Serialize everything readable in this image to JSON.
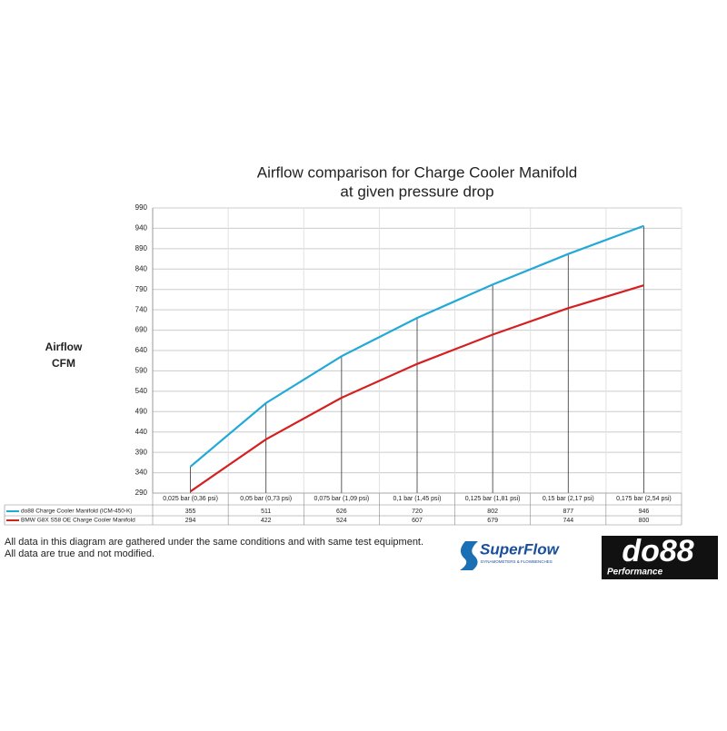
{
  "chart_data": {
    "type": "line",
    "title_lines": [
      "Airflow comparison for Charge Cooler Manifold",
      "at given pressure drop"
    ],
    "y_label_lines": [
      "Airflow",
      "CFM"
    ],
    "categories": [
      "0,025 bar (0,36 psi)",
      "0,05 bar (0,73 psi)",
      "0,075 bar (1,09 psi)",
      "0,1 bar (1,45 psi)",
      "0,125 bar (1,81 psi)",
      "0,15 bar (2,17 psi)",
      "0,175 bar (2,54 psi)"
    ],
    "series": [
      {
        "name": "do88 Charge Cooler Manifold (ICM-450-K)",
        "color": "#22a9d8",
        "values": [
          355,
          511,
          626,
          720,
          802,
          877,
          946
        ]
      },
      {
        "name": "BMW G8X S58 OE Charge Cooler Manifold",
        "color": "#d42020",
        "values": [
          294,
          422,
          524,
          607,
          679,
          744,
          800
        ]
      }
    ],
    "ylim": [
      290,
      990
    ],
    "yticks": [
      290,
      340,
      390,
      440,
      490,
      540,
      590,
      640,
      690,
      740,
      790,
      840,
      890,
      940,
      990
    ],
    "grid": true
  },
  "notes": [
    "All data in this diagram are gathered under the same conditions and with same test equipment.",
    "All data are true and not modified."
  ],
  "logos": {
    "superflow": "SuperFlow",
    "superflow_tag": "DYNAMOMETERS & FLOWBENCHES",
    "do88": "do88",
    "do88_tag": "Performance"
  }
}
